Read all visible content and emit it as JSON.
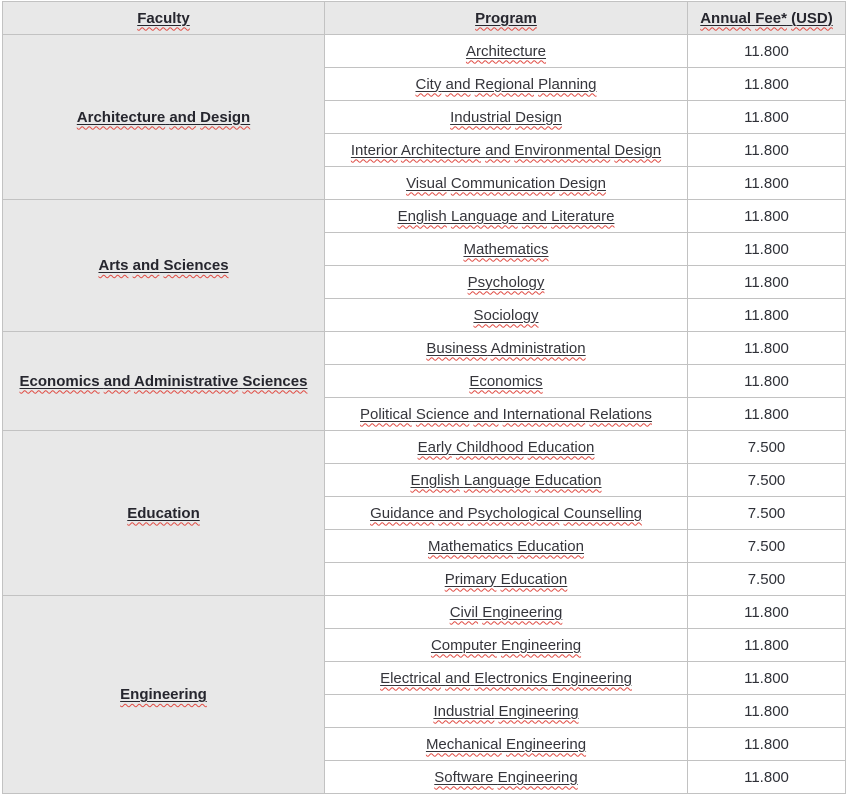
{
  "table": {
    "headers": [
      "Faculty",
      "Program",
      "Annual Fee* (USD)"
    ],
    "groups": [
      {
        "faculty": "Architecture and Design",
        "programs": [
          {
            "name": "Architecture",
            "fee": "11.800"
          },
          {
            "name": "City and Regional Planning",
            "fee": "11.800"
          },
          {
            "name": "Industrial Design",
            "fee": "11.800"
          },
          {
            "name": "Interior Architecture and Environmental Design",
            "fee": "11.800"
          },
          {
            "name": "Visual Communication Design",
            "fee": "11.800"
          }
        ]
      },
      {
        "faculty": "Arts and Sciences",
        "programs": [
          {
            "name": "English Language and Literature",
            "fee": "11.800"
          },
          {
            "name": "Mathematics",
            "fee": "11.800"
          },
          {
            "name": "Psychology",
            "fee": "11.800"
          },
          {
            "name": "Sociology",
            "fee": "11.800"
          }
        ]
      },
      {
        "faculty": "Economics and Administrative Sciences",
        "programs": [
          {
            "name": "Business Administration",
            "fee": "11.800"
          },
          {
            "name": "Economics",
            "fee": "11.800"
          },
          {
            "name": "Political Science and International Relations",
            "fee": "11.800"
          }
        ]
      },
      {
        "faculty": "Education",
        "programs": [
          {
            "name": "Early Childhood Education",
            "fee": "7.500"
          },
          {
            "name": "English Language Education",
            "fee": "7.500"
          },
          {
            "name": "Guidance and Psychological Counselling",
            "fee": "7.500"
          },
          {
            "name": "Mathematics Education",
            "fee": "7.500"
          },
          {
            "name": "Primary Education",
            "fee": "7.500"
          }
        ]
      },
      {
        "faculty": "Engineering",
        "programs": [
          {
            "name": "Civil Engineering",
            "fee": "11.800"
          },
          {
            "name": "Computer Engineering",
            "fee": "11.800"
          },
          {
            "name": "Electrical and Electronics Engineering",
            "fee": "11.800"
          },
          {
            "name": "Industrial Engineering",
            "fee": "11.800"
          },
          {
            "name": "Mechanical Engineering",
            "fee": "11.800"
          },
          {
            "name": "Software Engineering",
            "fee": "11.800"
          }
        ]
      }
    ]
  },
  "colors": {
    "header_bg": "#e8e8e8",
    "border": "#c2c2c2",
    "squiggle_red": "#e04b43",
    "bold_text": "#26262e",
    "body_text": "#35353b"
  }
}
